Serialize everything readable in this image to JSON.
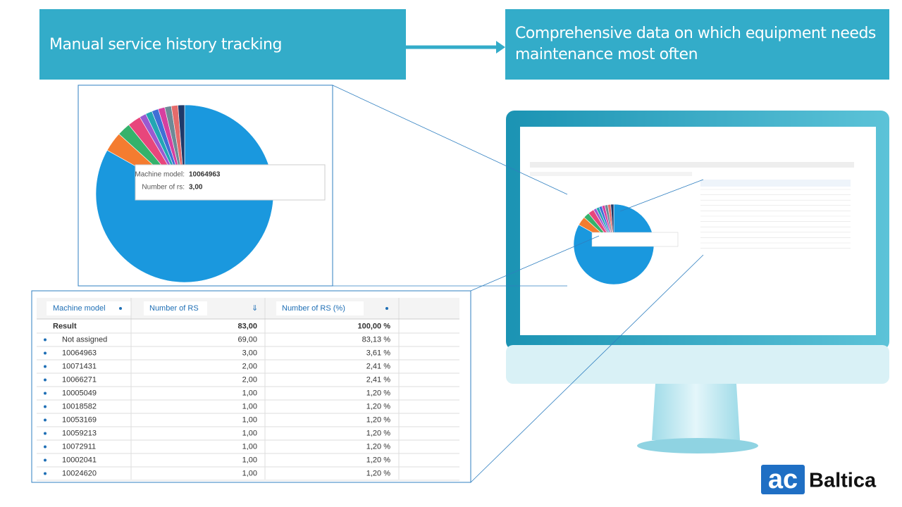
{
  "header": {
    "left": "Manual service history tracking",
    "right": "Comprehensive data on which equipment needs maintenance most often"
  },
  "tooltip": {
    "model_label": "Machine model:",
    "model_value": "10064963",
    "count_label": "Number of rs:",
    "count_value": "3,00"
  },
  "table": {
    "columns": [
      "Machine model",
      "Number of RS",
      "Number of RS (%)"
    ],
    "rows": [
      [
        "Result",
        "83,00",
        "100,00 %"
      ],
      [
        "Not assigned",
        "69,00",
        "83,13 %"
      ],
      [
        "10064963",
        "3,00",
        "3,61 %"
      ],
      [
        "10071431",
        "2,00",
        "2,41 %"
      ],
      [
        "10066271",
        "2,00",
        "2,41 %"
      ],
      [
        "10005049",
        "1,00",
        "1,20 %"
      ],
      [
        "10018582",
        "1,00",
        "1,20 %"
      ],
      [
        "10053169",
        "1,00",
        "1,20 %"
      ],
      [
        "10059213",
        "1,00",
        "1,20 %"
      ],
      [
        "10072911",
        "1,00",
        "1,20 %"
      ],
      [
        "10002041",
        "1,00",
        "1,20 %"
      ],
      [
        "10024620",
        "1,00",
        "1,20 %"
      ]
    ]
  },
  "slice_colors": [
    "#1a98de",
    "#f47c30",
    "#35b26b",
    "#e8467c",
    "#9b59d0",
    "#22a6b3",
    "#3f6fd6",
    "#d63fa0",
    "#6d8a96",
    "#e56b6b",
    "#1f3a6a"
  ],
  "logo": {
    "mark": "ac",
    "name": "Baltica"
  }
}
